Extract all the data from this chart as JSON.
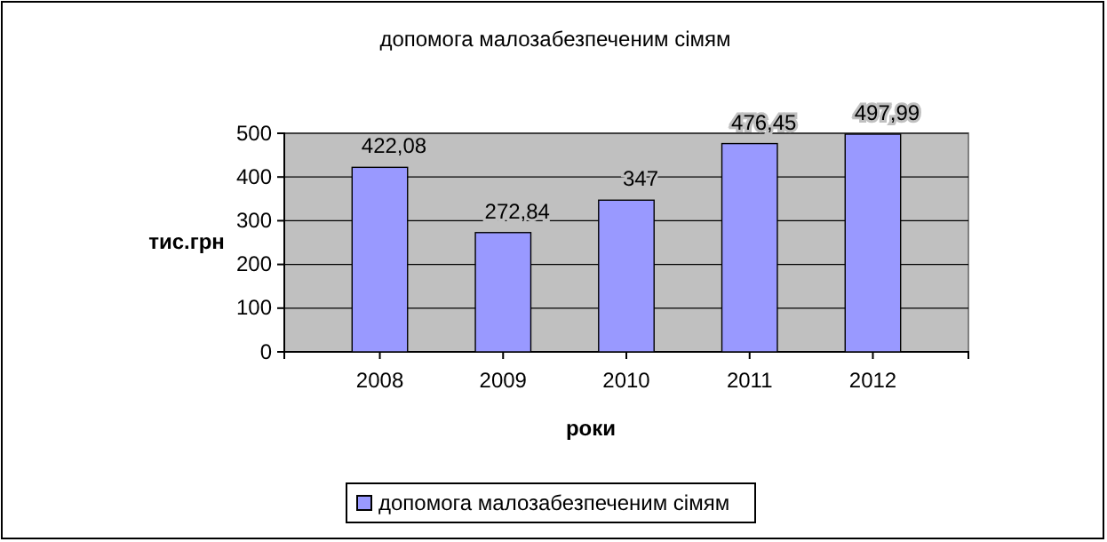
{
  "chart_data": {
    "type": "bar",
    "title": "допомога малозабезпеченим сімям",
    "xlabel": "роки",
    "ylabel": "тис.грн",
    "categories": [
      "2008",
      "2009",
      "2010",
      "2011",
      "2012"
    ],
    "series": [
      {
        "name": "допомога малозабезпеченим сімям",
        "color": "#9999ff",
        "values": [
          422.08,
          272.84,
          347,
          476.45,
          497.99
        ],
        "value_labels": [
          "422,08",
          "272,84",
          "347",
          "476,45",
          "497,99"
        ]
      }
    ],
    "ylim": [
      0,
      500
    ],
    "yticks": [
      0,
      100,
      200,
      300,
      400,
      500
    ],
    "grid": "y",
    "legend": "bottom"
  }
}
